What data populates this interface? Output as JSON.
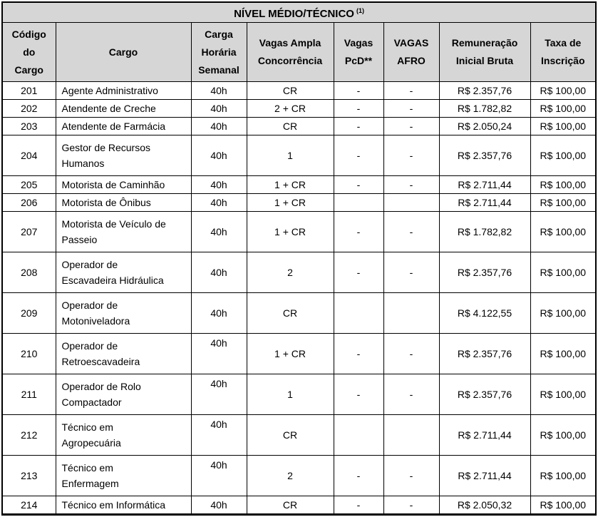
{
  "colors": {
    "header_bg": "#d6d6d6",
    "border": "#000000",
    "page_bg": "#ffffff",
    "text": "#000000"
  },
  "table": {
    "title": "NÍVEL MÉDIO/TÉCNICO",
    "title_superscript": "(1)",
    "columns": [
      "Código\ndo\nCargo",
      "Cargo",
      "Carga\nHorária\nSemanal",
      "Vagas Ampla\nConcorrência",
      "Vagas\nPcD**",
      "VAGAS\nAFRO",
      "Remuneração\nInicial Bruta",
      "Taxa de\nInscrição"
    ],
    "rows": [
      {
        "codigo": "201",
        "cargo": "Agente Administrativo",
        "carga": "40h",
        "vagas_ampla": "CR",
        "vagas_pcd": "-",
        "vagas_afro": "-",
        "remuneracao": "R$ 2.357,76",
        "taxa": "R$ 100,00"
      },
      {
        "codigo": "202",
        "cargo": "Atendente de Creche",
        "carga": "40h",
        "vagas_ampla": "2 + CR",
        "vagas_pcd": "-",
        "vagas_afro": "-",
        "remuneracao": "R$ 1.782,82",
        "taxa": "R$ 100,00"
      },
      {
        "codigo": "203",
        "cargo": "Atendente de Farmácia",
        "carga": "40h",
        "vagas_ampla": "CR",
        "vagas_pcd": "-",
        "vagas_afro": "-",
        "remuneracao": "R$ 2.050,24",
        "taxa": "R$ 100,00"
      },
      {
        "codigo": "204",
        "cargo": "Gestor de Recursos\nHumanos",
        "carga": "40h",
        "vagas_ampla": "1",
        "vagas_pcd": "-",
        "vagas_afro": "-",
        "remuneracao": "R$ 2.357,76",
        "taxa": "R$ 100,00"
      },
      {
        "codigo": "205",
        "cargo": "Motorista de Caminhão",
        "carga": "40h",
        "vagas_ampla": "1 + CR",
        "vagas_pcd": "-",
        "vagas_afro": "-",
        "remuneracao": "R$ 2.711,44",
        "taxa": "R$ 100,00"
      },
      {
        "codigo": "206",
        "cargo": "Motorista de Ônibus",
        "carga": "40h",
        "vagas_ampla": "1 + CR",
        "vagas_pcd": "",
        "vagas_afro": "",
        "remuneracao": "R$ 2.711,44",
        "taxa": "R$ 100,00"
      },
      {
        "codigo": "207",
        "cargo": "Motorista de Veículo de\nPasseio",
        "carga": "40h",
        "vagas_ampla": "1 + CR",
        "vagas_pcd": "-",
        "vagas_afro": "-",
        "remuneracao": "R$ 1.782,82",
        "taxa": "R$ 100,00"
      },
      {
        "codigo": "208",
        "cargo": "Operador de\nEscavadeira Hidráulica",
        "carga": "40h",
        "vagas_ampla": "2",
        "vagas_pcd": "-",
        "vagas_afro": "-",
        "remuneracao": "R$ 2.357,76",
        "taxa": "R$ 100,00"
      },
      {
        "codigo": "209",
        "cargo": "Operador de\nMotoniveladora",
        "carga": "40h",
        "vagas_ampla": "CR",
        "vagas_pcd": "",
        "vagas_afro": "",
        "remuneracao": "R$ 4.122,55",
        "taxa": "R$ 100,00"
      },
      {
        "codigo": "210",
        "cargo": "Operador de\nRetroescavadeira",
        "carga": "40h",
        "vagas_ampla": "1 + CR",
        "vagas_pcd": "-",
        "vagas_afro": "-",
        "remuneracao": "R$ 2.357,76",
        "taxa": "R$ 100,00"
      },
      {
        "codigo": "211",
        "cargo": "Operador de Rolo\nCompactador",
        "carga": "40h",
        "vagas_ampla": "1",
        "vagas_pcd": "-",
        "vagas_afro": "-",
        "remuneracao": "R$ 2.357,76",
        "taxa": "R$ 100,00"
      },
      {
        "codigo": "212",
        "cargo": "Técnico em\nAgropecuária",
        "carga": "40h",
        "vagas_ampla": "CR",
        "vagas_pcd": "",
        "vagas_afro": "",
        "remuneracao": "R$ 2.711,44",
        "taxa": "R$ 100,00"
      },
      {
        "codigo": "213",
        "cargo": "Técnico em\nEnfermagem",
        "carga": "40h",
        "vagas_ampla": "2",
        "vagas_pcd": "-",
        "vagas_afro": "-",
        "remuneracao": "R$ 2.711,44",
        "taxa": "R$ 100,00"
      },
      {
        "codigo": "214",
        "cargo": "Técnico em Informática",
        "carga": "40h",
        "vagas_ampla": "CR",
        "vagas_pcd": "-",
        "vagas_afro": "-",
        "remuneracao": "R$ 2.050,32",
        "taxa": "R$ 100,00"
      }
    ]
  }
}
